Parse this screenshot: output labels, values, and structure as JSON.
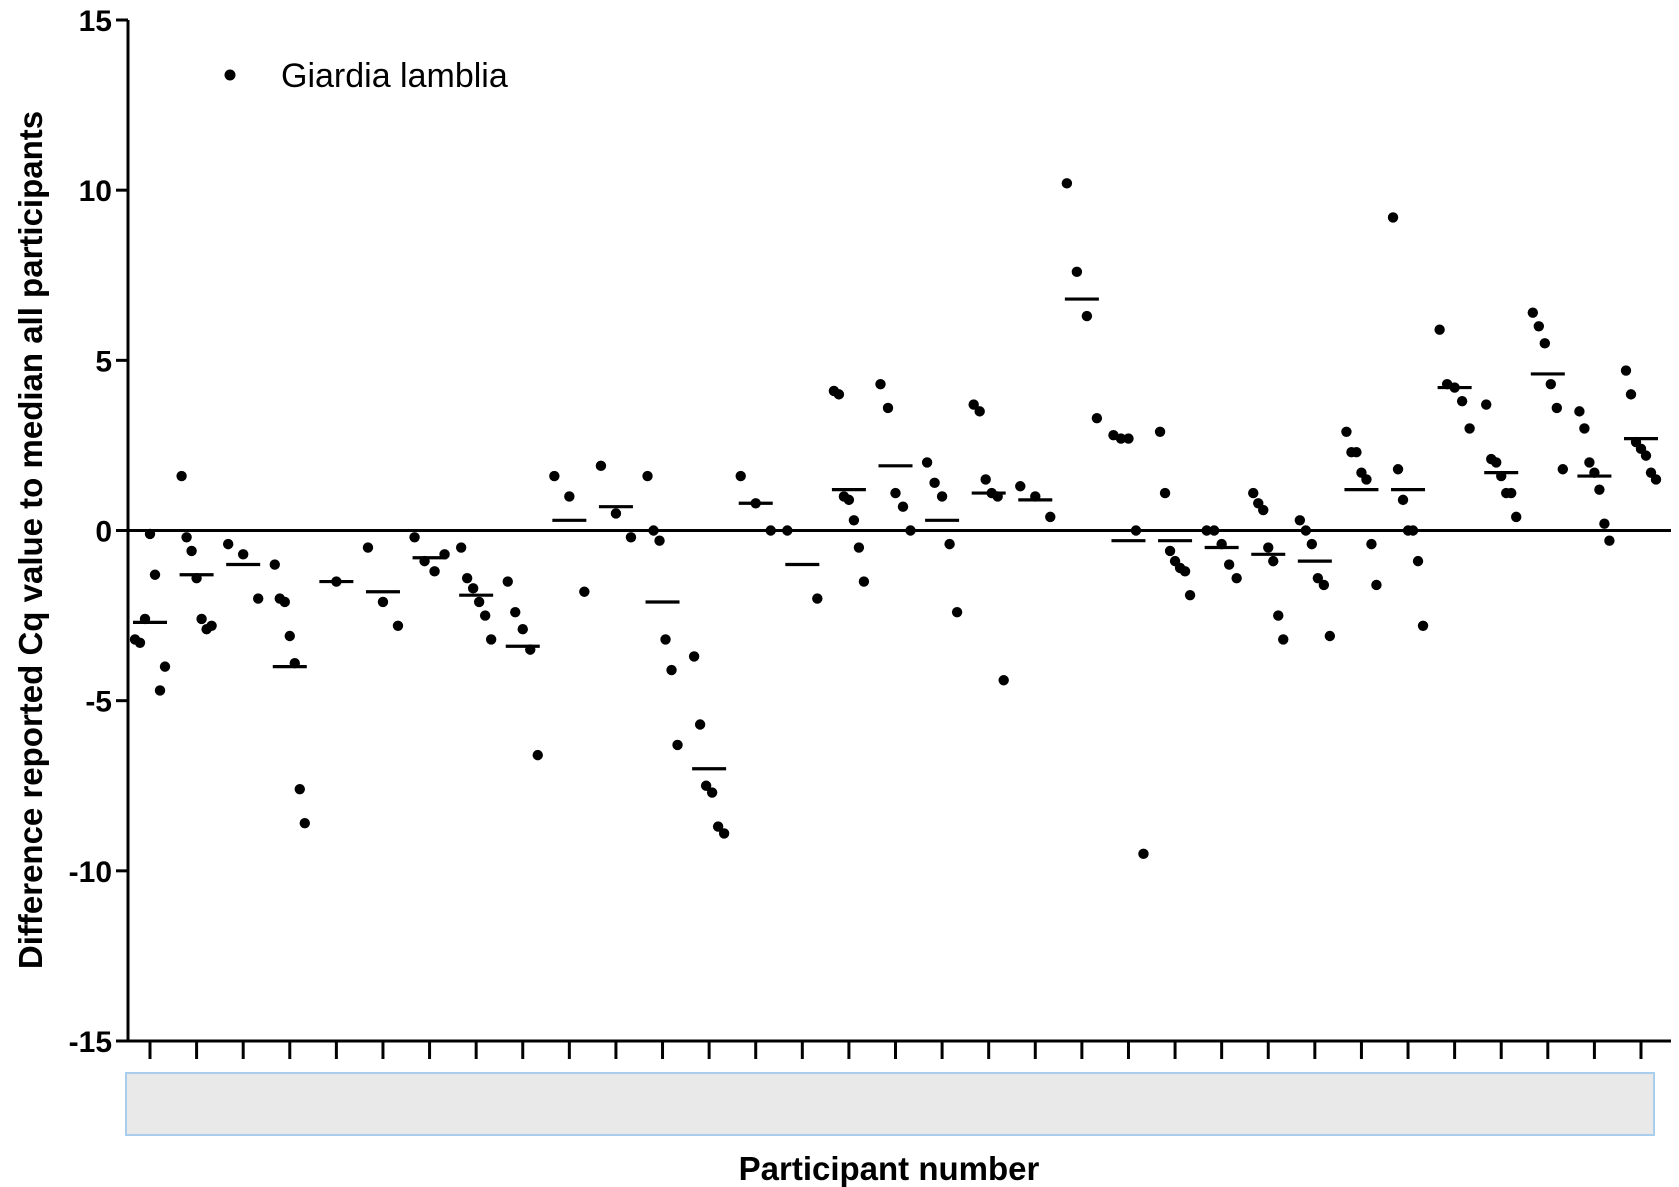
{
  "chart_data": {
    "type": "scatter",
    "title": "",
    "xlabel": "Participant number",
    "ylabel": "Difference reported Cq value to median all participants",
    "ylim": [
      -15,
      15
    ],
    "yticks": [
      -15,
      -10,
      -5,
      0,
      5,
      10,
      15
    ],
    "ytick_labels": [
      "-15",
      "-10",
      "-5",
      "0",
      "5",
      "10",
      "15"
    ],
    "xtick_labels_hidden": true,
    "reference_line_y": 0,
    "legend": {
      "position": "top-left",
      "entries": [
        "Giardia lamblia"
      ]
    },
    "series": [
      {
        "name": "Giardia lamblia",
        "participants": [
          {
            "id": 1,
            "points": [
              -3.2,
              -3.3,
              -2.6,
              -0.1,
              -1.3,
              -4.7,
              -4.0
            ],
            "median": -2.7
          },
          {
            "id": 2,
            "points": [
              1.6,
              -0.2,
              -0.6,
              -1.4,
              -2.6,
              -2.9,
              -2.8
            ],
            "median": -1.3
          },
          {
            "id": 3,
            "points": [
              -0.4,
              -0.7,
              -2.0
            ],
            "median": -1.0
          },
          {
            "id": 4,
            "points": [
              -1.0,
              -2.0,
              -2.1,
              -3.1,
              -3.9,
              -7.6,
              -8.6
            ],
            "median": -4.0
          },
          {
            "id": 5,
            "points": [
              -1.5
            ],
            "median": -1.5
          },
          {
            "id": 6,
            "points": [
              -0.5,
              -2.1,
              -2.8
            ],
            "median": -1.8
          },
          {
            "id": 7,
            "points": [
              -0.2,
              -0.9,
              -1.2,
              -0.7
            ],
            "median": -0.8
          },
          {
            "id": 8,
            "points": [
              -0.5,
              -1.4,
              -1.7,
              -2.1,
              -2.5,
              -3.2
            ],
            "median": -1.9
          },
          {
            "id": 9,
            "points": [
              -1.5,
              -2.4,
              -2.9,
              -3.5,
              -6.6
            ],
            "median": -3.4
          },
          {
            "id": 10,
            "points": [
              1.6,
              1.0,
              -1.8
            ],
            "median": 0.3
          },
          {
            "id": 11,
            "points": [
              1.9,
              0.5,
              -0.2
            ],
            "median": 0.7
          },
          {
            "id": 12,
            "points": [
              1.6,
              0.0,
              -0.3,
              -3.2,
              -4.1,
              -6.3
            ],
            "median": -2.1
          },
          {
            "id": 13,
            "points": [
              -3.7,
              -5.7,
              -7.5,
              -7.7,
              -8.7,
              -8.9
            ],
            "median": -7.0
          },
          {
            "id": 14,
            "points": [
              1.6,
              0.8,
              0.0
            ],
            "median": 0.8
          },
          {
            "id": 15,
            "points": [
              0.0,
              -2.0
            ],
            "median": -1.0
          },
          {
            "id": 16,
            "points": [
              4.1,
              4.0,
              1.0,
              0.9,
              0.3,
              -0.5,
              -1.5
            ],
            "median": 1.2
          },
          {
            "id": 17,
            "points": [
              4.3,
              3.6,
              1.1,
              0.7,
              0.0
            ],
            "median": 1.9
          },
          {
            "id": 18,
            "points": [
              2.0,
              1.4,
              1.0,
              -0.4,
              -2.4
            ],
            "median": 0.3
          },
          {
            "id": 19,
            "points": [
              3.7,
              3.5,
              1.5,
              1.1,
              1.0,
              -4.4
            ],
            "median": 1.1
          },
          {
            "id": 20,
            "points": [
              1.3,
              1.0,
              0.4
            ],
            "median": 0.9
          },
          {
            "id": 21,
            "points": [
              10.2,
              7.6,
              6.3,
              3.3
            ],
            "median": 6.8
          },
          {
            "id": 22,
            "points": [
              2.8,
              2.7,
              2.7,
              0.0,
              -9.5
            ],
            "median": -0.3
          },
          {
            "id": 23,
            "points": [
              2.9,
              1.1,
              -0.6,
              -0.9,
              -1.1,
              -1.2,
              -1.9
            ],
            "median": -0.3
          },
          {
            "id": 24,
            "points": [
              0.0,
              0.0,
              -0.4,
              -1.0,
              -1.4
            ],
            "median": -0.5
          },
          {
            "id": 25,
            "points": [
              1.1,
              0.8,
              0.6,
              -0.5,
              -0.9,
              -2.5,
              -3.2
            ],
            "median": -0.7
          },
          {
            "id": 26,
            "points": [
              0.3,
              0.0,
              -0.4,
              -1.4,
              -1.6,
              -3.1
            ],
            "median": -0.9
          },
          {
            "id": 27,
            "points": [
              2.9,
              2.3,
              2.3,
              1.7,
              1.5,
              -0.4,
              -1.6
            ],
            "median": 1.2
          },
          {
            "id": 28,
            "points": [
              9.2,
              1.8,
              0.9,
              0.0,
              0.0,
              -0.9,
              -2.8
            ],
            "median": 1.2
          },
          {
            "id": 29,
            "points": [
              5.9,
              4.3,
              4.2,
              3.8,
              3.0
            ],
            "median": 4.2
          },
          {
            "id": 30,
            "points": [
              3.7,
              2.1,
              2.0,
              1.6,
              1.1,
              1.1,
              0.4
            ],
            "median": 1.7
          },
          {
            "id": 31,
            "points": [
              6.4,
              6.0,
              5.5,
              4.3,
              3.6,
              1.8
            ],
            "median": 4.6
          },
          {
            "id": 32,
            "points": [
              3.5,
              3.0,
              2.0,
              1.7,
              1.2,
              0.2,
              -0.3
            ],
            "median": 1.6
          },
          {
            "id": 33,
            "points": [
              4.7,
              4.0,
              2.6,
              2.4,
              2.2,
              1.7,
              1.5
            ],
            "median": 2.7
          }
        ]
      }
    ]
  }
}
